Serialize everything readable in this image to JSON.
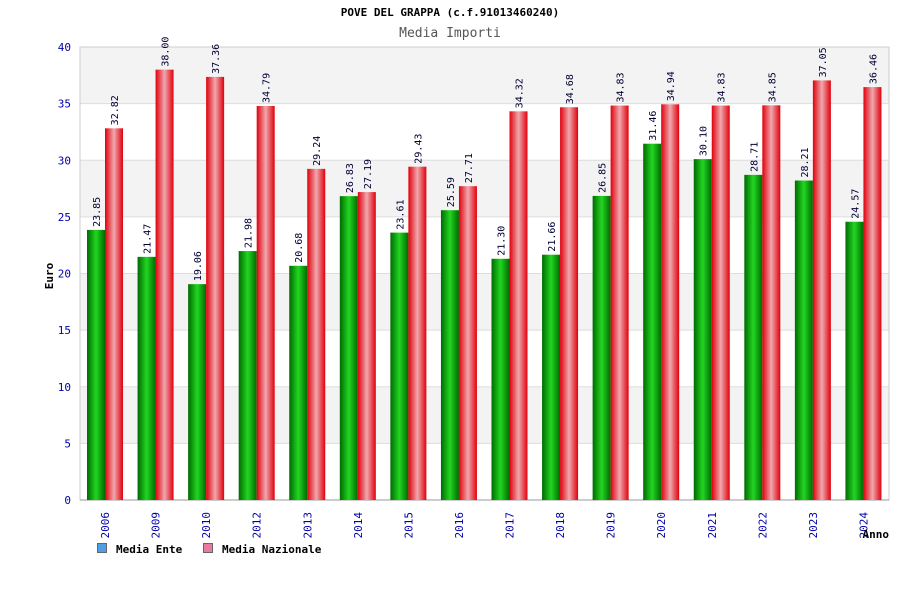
{
  "chart_data": {
    "type": "bar",
    "title": "POVE DEL GRAPPA (c.f.91013460240)",
    "subtitle": "Media Importi",
    "xlabel": "Anno",
    "ylabel": "Euro",
    "ylim": [
      0,
      40
    ],
    "yticks": [
      "0",
      "5",
      "10",
      "15",
      "20",
      "25",
      "30",
      "35",
      "40"
    ],
    "grid": true,
    "legend_position": "bottom-left",
    "categories": [
      "2006",
      "2009",
      "2010",
      "2012",
      "2013",
      "2014",
      "2015",
      "2016",
      "2017",
      "2018",
      "2019",
      "2020",
      "2021",
      "2022",
      "2023",
      "2024"
    ],
    "series": [
      {
        "name": "Media Ente",
        "color": "#00b000",
        "values": [
          23.85,
          21.47,
          19.06,
          21.98,
          20.68,
          26.83,
          23.61,
          25.59,
          21.3,
          21.66,
          26.85,
          31.46,
          30.1,
          28.71,
          28.21,
          24.57
        ],
        "labels": [
          "23.85",
          "21.47",
          "19.06",
          "21.98",
          "20.68",
          "26.83",
          "23.61",
          "25.59",
          "21.30",
          "21.66",
          "26.85",
          "31.46",
          "30.10",
          "28.71",
          "28.21",
          "24.57"
        ]
      },
      {
        "name": "Media Nazionale",
        "color": "#e8101a",
        "values": [
          32.82,
          38.0,
          37.36,
          34.79,
          29.24,
          27.19,
          29.43,
          27.71,
          34.32,
          34.68,
          34.83,
          34.94,
          34.83,
          34.85,
          37.05,
          36.46
        ],
        "labels": [
          "32.82",
          "38.00",
          "37.36",
          "34.79",
          "29.24",
          "27.19",
          "29.43",
          "27.71",
          "34.32",
          "34.68",
          "34.83",
          "34.94",
          "34.83",
          "34.85",
          "37.05",
          "36.46"
        ]
      }
    ],
    "legend": [
      {
        "label": "Media Ente",
        "color": "#4f9ee8"
      },
      {
        "label": "Media Nazionale",
        "color": "#e87aa6"
      }
    ]
  }
}
